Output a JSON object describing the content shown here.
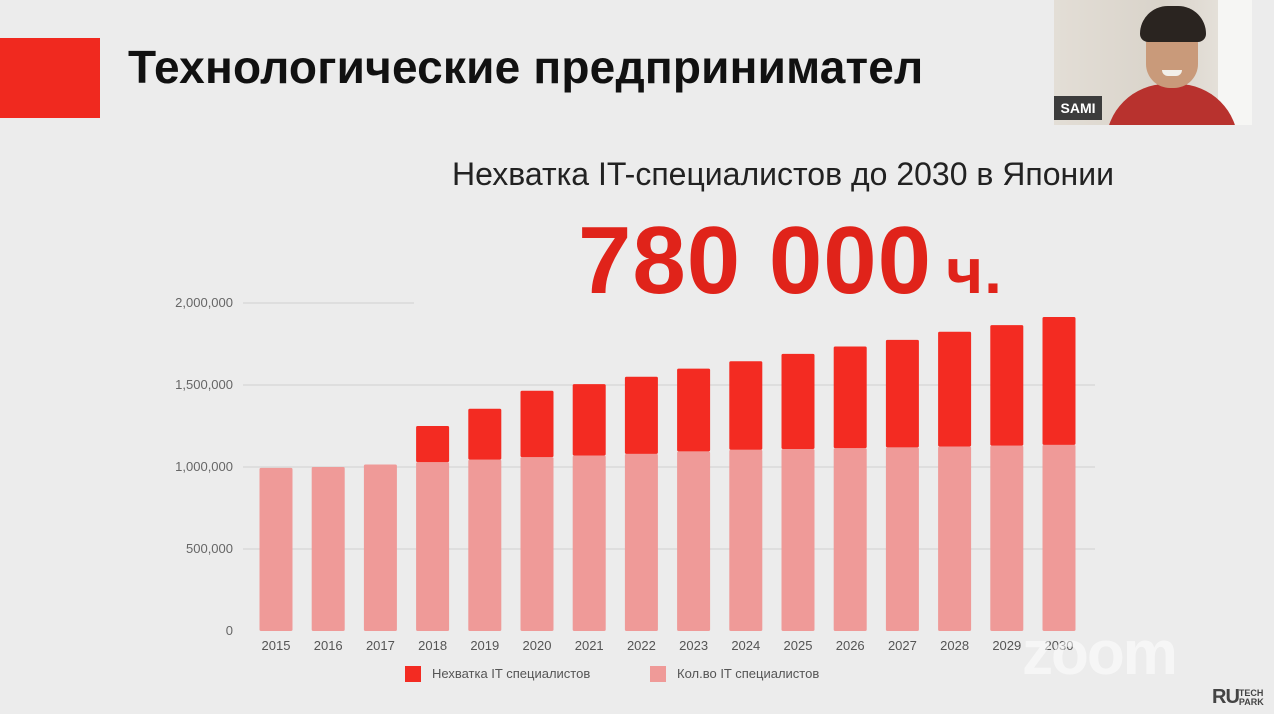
{
  "slide": {
    "title": "Технологические предпринимател",
    "subtitle": "Нехватка IT-специалистов до 2030 в Японии",
    "big_number": "780 000",
    "big_number_unit": "ч."
  },
  "video": {
    "name": "SAMI"
  },
  "watermark": {
    "zoom": "zoom"
  },
  "logo": {
    "ru": "RU",
    "tech": "TECH",
    "park": "PARK"
  },
  "colors": {
    "accent": "#f0291f",
    "shortage": "#f32b22",
    "specialists": "#ef9a98",
    "text_red": "#e0231a"
  },
  "chart_data": {
    "type": "bar",
    "stacked": true,
    "categories": [
      "2015",
      "2016",
      "2017",
      "2018",
      "2019",
      "2020",
      "2021",
      "2022",
      "2023",
      "2024",
      "2025",
      "2026",
      "2027",
      "2028",
      "2029",
      "2030"
    ],
    "series": [
      {
        "name": "Кол.во IT специалистов",
        "color": "#ef9a98",
        "values": [
          995000,
          1000000,
          1015000,
          1030000,
          1045000,
          1060000,
          1070000,
          1080000,
          1095000,
          1105000,
          1110000,
          1115000,
          1120000,
          1125000,
          1130000,
          1135000
        ]
      },
      {
        "name": "Нехватка IT специалистов",
        "color": "#f32b22",
        "values": [
          0,
          0,
          0,
          220000,
          310000,
          405000,
          435000,
          470000,
          505000,
          540000,
          580000,
          620000,
          655000,
          700000,
          735000,
          780000
        ]
      }
    ],
    "legend_order": [
      1,
      0
    ],
    "y_ticks": [
      "0",
      "500,000",
      "1,000,000",
      "1,500,000",
      "2,000,000"
    ],
    "y_tick_values": [
      0,
      500000,
      1000000,
      1500000,
      2000000
    ],
    "ylim": [
      0,
      2000000
    ],
    "grid": true,
    "legend": "bottom"
  }
}
